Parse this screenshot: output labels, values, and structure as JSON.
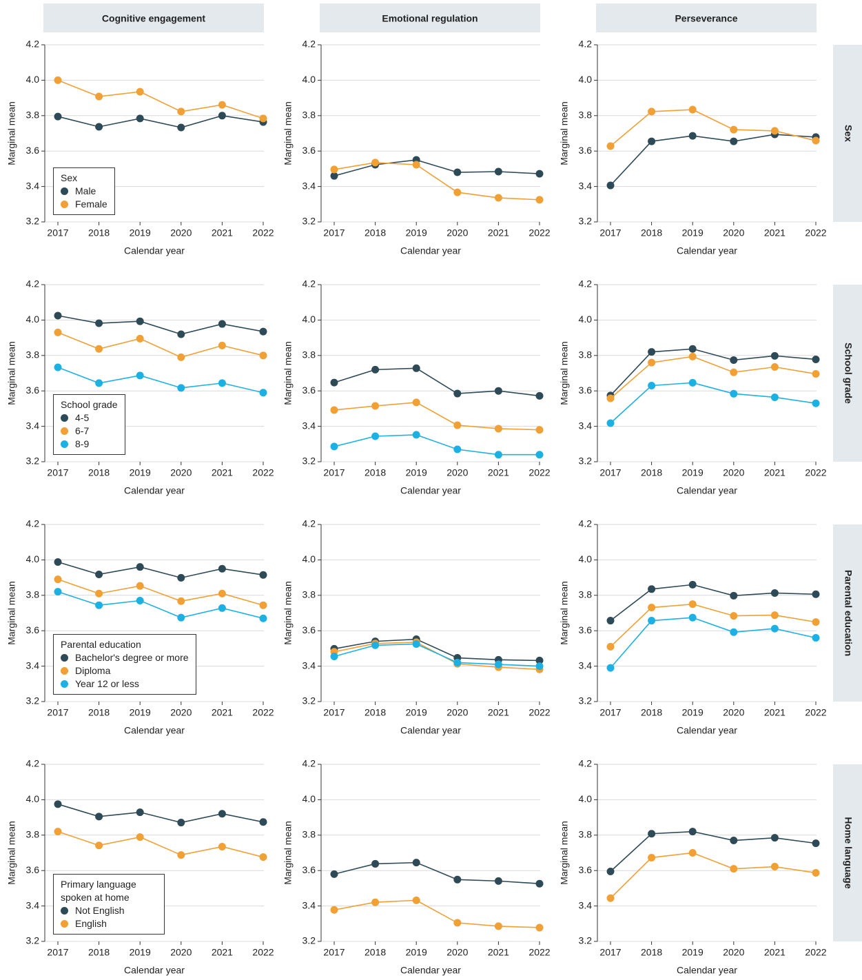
{
  "column_titles": [
    "Cognitive engagement",
    "Emotional regulation",
    "Perseverance"
  ],
  "row_titles": [
    "Sex",
    "School grade",
    "Parental education",
    "Home language"
  ],
  "chart_data": [
    {
      "type": "line",
      "categories": [
        "2017",
        "2018",
        "2019",
        "2020",
        "2021",
        "2022"
      ],
      "xlabel": "Calendar year",
      "ylabel": "Marginal mean",
      "ylim": [
        3.2,
        4.2
      ],
      "yticks": [
        3.2,
        3.4,
        3.6,
        3.8,
        {
          "value": 4.0,
          "label": "4.0"
        },
        4.2
      ],
      "grid": true,
      "legend": "lower left",
      "legend_title": "Sex",
      "series": [
        {
          "name": "Male",
          "color": "#2e4a57",
          "values": [
            3.795,
            3.737,
            3.784,
            3.733,
            3.8,
            3.764
          ]
        },
        {
          "name": "Female",
          "color": "#f0a035",
          "values": [
            4.0,
            3.908,
            3.935,
            3.823,
            3.861,
            3.784
          ]
        }
      ]
    },
    {
      "type": "line",
      "categories": [
        "2017",
        "2018",
        "2019",
        "2020",
        "2021",
        "2022"
      ],
      "xlabel": "Calendar year",
      "ylabel": "Marginal mean",
      "ylim": [
        3.2,
        4.2
      ],
      "yticks": [
        3.2,
        3.4,
        3.6,
        3.8,
        {
          "value": 4.0,
          "label": "4.0"
        },
        4.2
      ],
      "grid": true,
      "series": [
        {
          "color": "#2e4a57",
          "values": [
            3.46,
            3.523,
            3.55,
            3.48,
            3.484,
            3.472
          ]
        },
        {
          "color": "#f0a035",
          "values": [
            3.496,
            3.535,
            3.523,
            3.367,
            3.336,
            3.325
          ]
        }
      ]
    },
    {
      "type": "line",
      "categories": [
        "2017",
        "2018",
        "2019",
        "2020",
        "2021",
        "2022"
      ],
      "xlabel": "Calendar year",
      "ylabel": "Marginal mean",
      "ylim": [
        3.2,
        4.2
      ],
      "yticks": [
        3.2,
        3.4,
        3.6,
        3.8,
        {
          "value": 4.0,
          "label": "4.0"
        },
        4.2
      ],
      "grid": true,
      "series": [
        {
          "color": "#2e4a57",
          "values": [
            3.406,
            3.655,
            3.686,
            3.655,
            3.694,
            3.679
          ]
        },
        {
          "color": "#f0a035",
          "values": [
            3.628,
            3.823,
            3.834,
            3.721,
            3.714,
            3.659
          ]
        }
      ]
    },
    {
      "type": "line",
      "categories": [
        "2017",
        "2018",
        "2019",
        "2020",
        "2021",
        "2022"
      ],
      "xlabel": "Calendar year",
      "ylabel": "Marginal mean",
      "ylim": [
        3.2,
        4.2
      ],
      "yticks": [
        3.2,
        3.4,
        3.6,
        3.8,
        {
          "value": 4.0,
          "label": "4.0"
        },
        4.2
      ],
      "grid": true,
      "legend": "lower left",
      "legend_title": "School grade",
      "series": [
        {
          "name": "4-5",
          "color": "#2e4a57",
          "values": [
            4.025,
            3.982,
            3.993,
            3.92,
            3.978,
            3.935
          ]
        },
        {
          "name": "6-7",
          "color": "#f0a035",
          "values": [
            3.93,
            3.837,
            3.895,
            3.79,
            3.856,
            3.8
          ]
        },
        {
          "name": "8-9",
          "color": "#1db1e3",
          "values": [
            3.733,
            3.644,
            3.687,
            3.617,
            3.644,
            3.59
          ]
        }
      ]
    },
    {
      "type": "line",
      "categories": [
        "2017",
        "2018",
        "2019",
        "2020",
        "2021",
        "2022"
      ],
      "xlabel": "Calendar year",
      "ylabel": "Marginal mean",
      "ylim": [
        3.2,
        4.2
      ],
      "yticks": [
        3.2,
        3.4,
        3.6,
        3.8,
        {
          "value": 4.0,
          "label": "4.0"
        },
        4.2
      ],
      "grid": true,
      "series": [
        {
          "color": "#2e4a57",
          "values": [
            3.647,
            3.72,
            3.728,
            3.585,
            3.6,
            3.572
          ]
        },
        {
          "color": "#f0a035",
          "values": [
            3.492,
            3.515,
            3.535,
            3.406,
            3.387,
            3.38
          ]
        },
        {
          "color": "#1db1e3",
          "values": [
            3.286,
            3.344,
            3.352,
            3.27,
            3.24,
            3.24
          ]
        }
      ]
    },
    {
      "type": "line",
      "categories": [
        "2017",
        "2018",
        "2019",
        "2020",
        "2021",
        "2022"
      ],
      "xlabel": "Calendar year",
      "ylabel": "Marginal mean",
      "ylim": [
        3.2,
        4.2
      ],
      "yticks": [
        3.2,
        3.4,
        3.6,
        3.8,
        {
          "value": 4.0,
          "label": "4.0"
        },
        4.2
      ],
      "grid": true,
      "series": [
        {
          "color": "#2e4a57",
          "values": [
            3.574,
            3.82,
            3.837,
            3.774,
            3.798,
            3.778
          ]
        },
        {
          "color": "#f0a035",
          "values": [
            3.558,
            3.76,
            3.794,
            3.705,
            3.735,
            3.696
          ]
        },
        {
          "color": "#1db1e3",
          "values": [
            3.418,
            3.63,
            3.646,
            3.584,
            3.564,
            3.53
          ]
        }
      ]
    },
    {
      "type": "line",
      "categories": [
        "2017",
        "2018",
        "2019",
        "2020",
        "2021",
        "2022"
      ],
      "xlabel": "Calendar year",
      "ylabel": "Marginal mean",
      "ylim": [
        3.2,
        4.2
      ],
      "yticks": [
        3.2,
        3.4,
        3.6,
        3.8,
        {
          "value": 4.0,
          "label": "4.0"
        },
        4.2
      ],
      "grid": true,
      "legend": "lower left",
      "legend_title": "Parental education",
      "series": [
        {
          "name": "Bachelor's degree or more",
          "color": "#2e4a57",
          "values": [
            3.988,
            3.918,
            3.96,
            3.899,
            3.95,
            3.915
          ]
        },
        {
          "name": "Diploma",
          "color": "#f0a035",
          "values": [
            3.89,
            3.81,
            3.853,
            3.767,
            3.81,
            3.744
          ]
        },
        {
          "name": "Year 12 or less",
          "color": "#1db1e3",
          "values": [
            3.82,
            3.744,
            3.77,
            3.674,
            3.728,
            3.67
          ]
        }
      ]
    },
    {
      "type": "line",
      "categories": [
        "2017",
        "2018",
        "2019",
        "2020",
        "2021",
        "2022"
      ],
      "xlabel": "Calendar year",
      "ylabel": "Marginal mean",
      "ylim": [
        3.2,
        4.2
      ],
      "yticks": [
        3.2,
        3.4,
        3.6,
        3.8,
        {
          "value": 4.0,
          "label": "4.0"
        },
        4.2
      ],
      "grid": true,
      "series": [
        {
          "color": "#2e4a57",
          "values": [
            3.498,
            3.54,
            3.552,
            3.447,
            3.436,
            3.432
          ]
        },
        {
          "color": "#f0a035",
          "values": [
            3.481,
            3.528,
            3.535,
            3.413,
            3.394,
            3.382
          ]
        },
        {
          "color": "#1db1e3",
          "values": [
            3.455,
            3.518,
            3.525,
            3.42,
            3.41,
            3.4
          ]
        }
      ]
    },
    {
      "type": "line",
      "categories": [
        "2017",
        "2018",
        "2019",
        "2020",
        "2021",
        "2022"
      ],
      "xlabel": "Calendar year",
      "ylabel": "Marginal mean",
      "ylim": [
        3.2,
        4.2
      ],
      "yticks": [
        3.2,
        3.4,
        3.6,
        3.8,
        {
          "value": 4.0,
          "label": "4.0"
        },
        4.2
      ],
      "grid": true,
      "series": [
        {
          "color": "#2e4a57",
          "values": [
            3.657,
            3.835,
            3.86,
            3.798,
            3.813,
            3.806
          ]
        },
        {
          "color": "#f0a035",
          "values": [
            3.51,
            3.731,
            3.75,
            3.684,
            3.688,
            3.649
          ]
        },
        {
          "color": "#1db1e3",
          "values": [
            3.39,
            3.657,
            3.674,
            3.592,
            3.612,
            3.56
          ]
        }
      ]
    },
    {
      "type": "line",
      "categories": [
        "2017",
        "2018",
        "2019",
        "2020",
        "2021",
        "2022"
      ],
      "xlabel": "Calendar year",
      "ylabel": "Marginal mean",
      "ylim": [
        3.2,
        4.2
      ],
      "yticks": [
        3.2,
        3.4,
        3.6,
        3.8,
        {
          "value": 4.0,
          "label": "4.0"
        },
        4.2
      ],
      "grid": true,
      "legend": "lower left",
      "legend_title": "Primary language spoken at home",
      "series": [
        {
          "name": "Not English",
          "color": "#2e4a57",
          "values": [
            3.975,
            3.905,
            3.929,
            3.871,
            3.921,
            3.874
          ]
        },
        {
          "name": "English",
          "color": "#f0a035",
          "values": [
            3.82,
            3.742,
            3.789,
            3.688,
            3.735,
            3.676
          ]
        }
      ]
    },
    {
      "type": "line",
      "categories": [
        "2017",
        "2018",
        "2019",
        "2020",
        "2021",
        "2022"
      ],
      "xlabel": "Calendar year",
      "ylabel": "Marginal mean",
      "ylim": [
        3.2,
        4.2
      ],
      "yticks": [
        3.2,
        3.4,
        3.6,
        3.8,
        {
          "value": 4.0,
          "label": "4.0"
        },
        4.2
      ],
      "grid": true,
      "series": [
        {
          "color": "#2e4a57",
          "values": [
            3.58,
            3.638,
            3.645,
            3.549,
            3.541,
            3.526
          ]
        },
        {
          "color": "#f0a035",
          "values": [
            3.378,
            3.421,
            3.432,
            3.305,
            3.286,
            3.278
          ]
        }
      ]
    },
    {
      "type": "line",
      "categories": [
        "2017",
        "2018",
        "2019",
        "2020",
        "2021",
        "2022"
      ],
      "xlabel": "Calendar year",
      "ylabel": "Marginal mean",
      "ylim": [
        3.2,
        4.2
      ],
      "yticks": [
        3.2,
        3.4,
        3.6,
        3.8,
        {
          "value": 4.0,
          "label": "4.0"
        },
        4.2
      ],
      "grid": true,
      "series": [
        {
          "color": "#2e4a57",
          "values": [
            3.595,
            3.808,
            3.82,
            3.77,
            3.785,
            3.754
          ]
        },
        {
          "color": "#f0a035",
          "values": [
            3.444,
            3.673,
            3.7,
            3.61,
            3.622,
            3.587
          ]
        }
      ]
    }
  ]
}
